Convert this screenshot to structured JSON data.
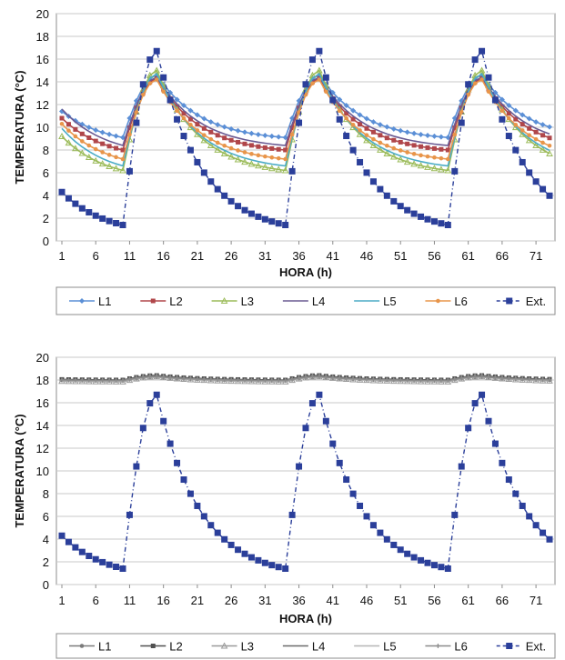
{
  "chart_data": [
    {
      "type": "line",
      "title": "",
      "xlabel": "HORA (h)",
      "ylabel": "TEMPERATURA (°C)",
      "xlim": [
        1,
        73
      ],
      "ylim": [
        0,
        20
      ],
      "xticks": [
        1,
        6,
        11,
        16,
        21,
        26,
        31,
        36,
        41,
        46,
        51,
        56,
        61,
        66,
        71
      ],
      "yticks": [
        0,
        2,
        4,
        6,
        8,
        10,
        12,
        14,
        16,
        18,
        20
      ],
      "grid": true,
      "legend": "bottom",
      "series": [
        {
          "name": "L1",
          "color": "#5b8fd6",
          "marker": "diamond",
          "dashed": false,
          "start": 11.4,
          "peak": 14.6,
          "end": 9.1
        },
        {
          "name": "L2",
          "color": "#b0464a",
          "marker": "square",
          "dashed": false,
          "start": 10.8,
          "peak": 14.3,
          "end": 8.0
        },
        {
          "name": "L3",
          "color": "#9bbb59",
          "marker": "triangle",
          "dashed": false,
          "start": 9.2,
          "peak": 15.0,
          "end": 6.2
        },
        {
          "name": "L4",
          "color": "#6a5a92",
          "marker": "none",
          "dashed": false,
          "start": 11.6,
          "peak": 14.4,
          "end": 8.4
        },
        {
          "name": "L5",
          "color": "#4bacc6",
          "marker": "none",
          "dashed": false,
          "start": 9.9,
          "peak": 14.7,
          "end": 6.6
        },
        {
          "name": "L6",
          "color": "#e8954a",
          "marker": "circle",
          "dashed": false,
          "start": 10.3,
          "peak": 14.2,
          "end": 7.2
        },
        {
          "name": "Ext.",
          "color": "#2b3f9a",
          "marker": "square-large",
          "dashed": true,
          "start": 4.3,
          "peak": 16.7,
          "end": 1.4
        }
      ]
    },
    {
      "type": "line",
      "title": "",
      "xlabel": "HORA (h)",
      "ylabel": "TEMPERATURA (°C)",
      "xlim": [
        1,
        73
      ],
      "ylim": [
        0,
        20
      ],
      "xticks": [
        1,
        6,
        11,
        16,
        21,
        26,
        31,
        36,
        41,
        46,
        51,
        56,
        61,
        66,
        71
      ],
      "yticks": [
        0,
        2,
        4,
        6,
        8,
        10,
        12,
        14,
        16,
        18,
        20
      ],
      "grid": true,
      "legend": "bottom",
      "series": [
        {
          "name": "L1",
          "color": "#7a7a7a",
          "marker": "circle",
          "dashed": false,
          "start": 18.0,
          "peak": 18.3,
          "end": 17.95
        },
        {
          "name": "L2",
          "color": "#505050",
          "marker": "square",
          "dashed": false,
          "start": 18.05,
          "peak": 18.4,
          "end": 18.0
        },
        {
          "name": "L3",
          "color": "#9a9a9a",
          "marker": "triangle",
          "dashed": false,
          "start": 17.9,
          "peak": 18.3,
          "end": 17.85
        },
        {
          "name": "L4",
          "color": "#6a6a6a",
          "marker": "none",
          "dashed": false,
          "start": 18.0,
          "peak": 18.35,
          "end": 17.95
        },
        {
          "name": "L5",
          "color": "#b5b5b5",
          "marker": "none",
          "dashed": false,
          "start": 17.95,
          "peak": 18.25,
          "end": 17.9
        },
        {
          "name": "L6",
          "color": "#8a8a8a",
          "marker": "cross",
          "dashed": false,
          "start": 18.0,
          "peak": 18.3,
          "end": 17.95
        },
        {
          "name": "Ext.",
          "color": "#2b3f9a",
          "marker": "square-large",
          "dashed": true,
          "start": 4.3,
          "peak": 16.7,
          "end": 1.4
        }
      ]
    }
  ]
}
